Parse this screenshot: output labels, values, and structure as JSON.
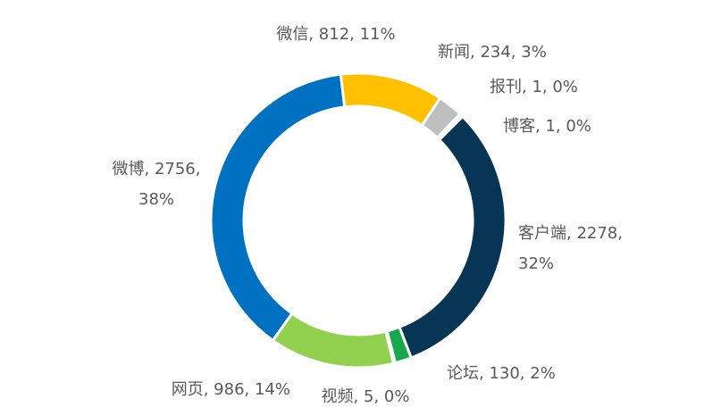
{
  "chart_data": {
    "type": "pie",
    "variant": "donut",
    "slices": [
      {
        "name": "新闻",
        "value": 234,
        "percent": "3%",
        "color": "#bfbfbf",
        "label_lines": [
          "新闻, 234, 3%"
        ]
      },
      {
        "name": "报刊",
        "value": 1,
        "percent": "0%",
        "color": "#a5a5a5",
        "label_lines": [
          "报刊, 1, 0%"
        ]
      },
      {
        "name": "博客",
        "value": 1,
        "percent": "0%",
        "color": "#264478",
        "label_lines": [
          "博客, 1, 0%"
        ]
      },
      {
        "name": "客户端",
        "value": 2278,
        "percent": "32%",
        "color": "#073556",
        "label_lines": [
          "客户端, 2278,",
          "32%"
        ]
      },
      {
        "name": "论坛",
        "value": 130,
        "percent": "2%",
        "color": "#16a84b",
        "label_lines": [
          "论坛, 130, 2%"
        ]
      },
      {
        "name": "视频",
        "value": 5,
        "percent": "0%",
        "color": "#0b7a3a",
        "label_lines": [
          "视频, 5, 0%"
        ]
      },
      {
        "name": "网页",
        "value": 986,
        "percent": "14%",
        "color": "#92d050",
        "label_lines": [
          "网页, 986, 14%"
        ]
      },
      {
        "name": "微博",
        "value": 2756,
        "percent": "38%",
        "color": "#0070c0",
        "label_lines": [
          "微博, 2756,",
          "38%"
        ]
      },
      {
        "name": "微信",
        "value": 812,
        "percent": "11%",
        "color": "#ffc000",
        "label_lines": [
          "微信, 812, 11%"
        ]
      }
    ]
  }
}
